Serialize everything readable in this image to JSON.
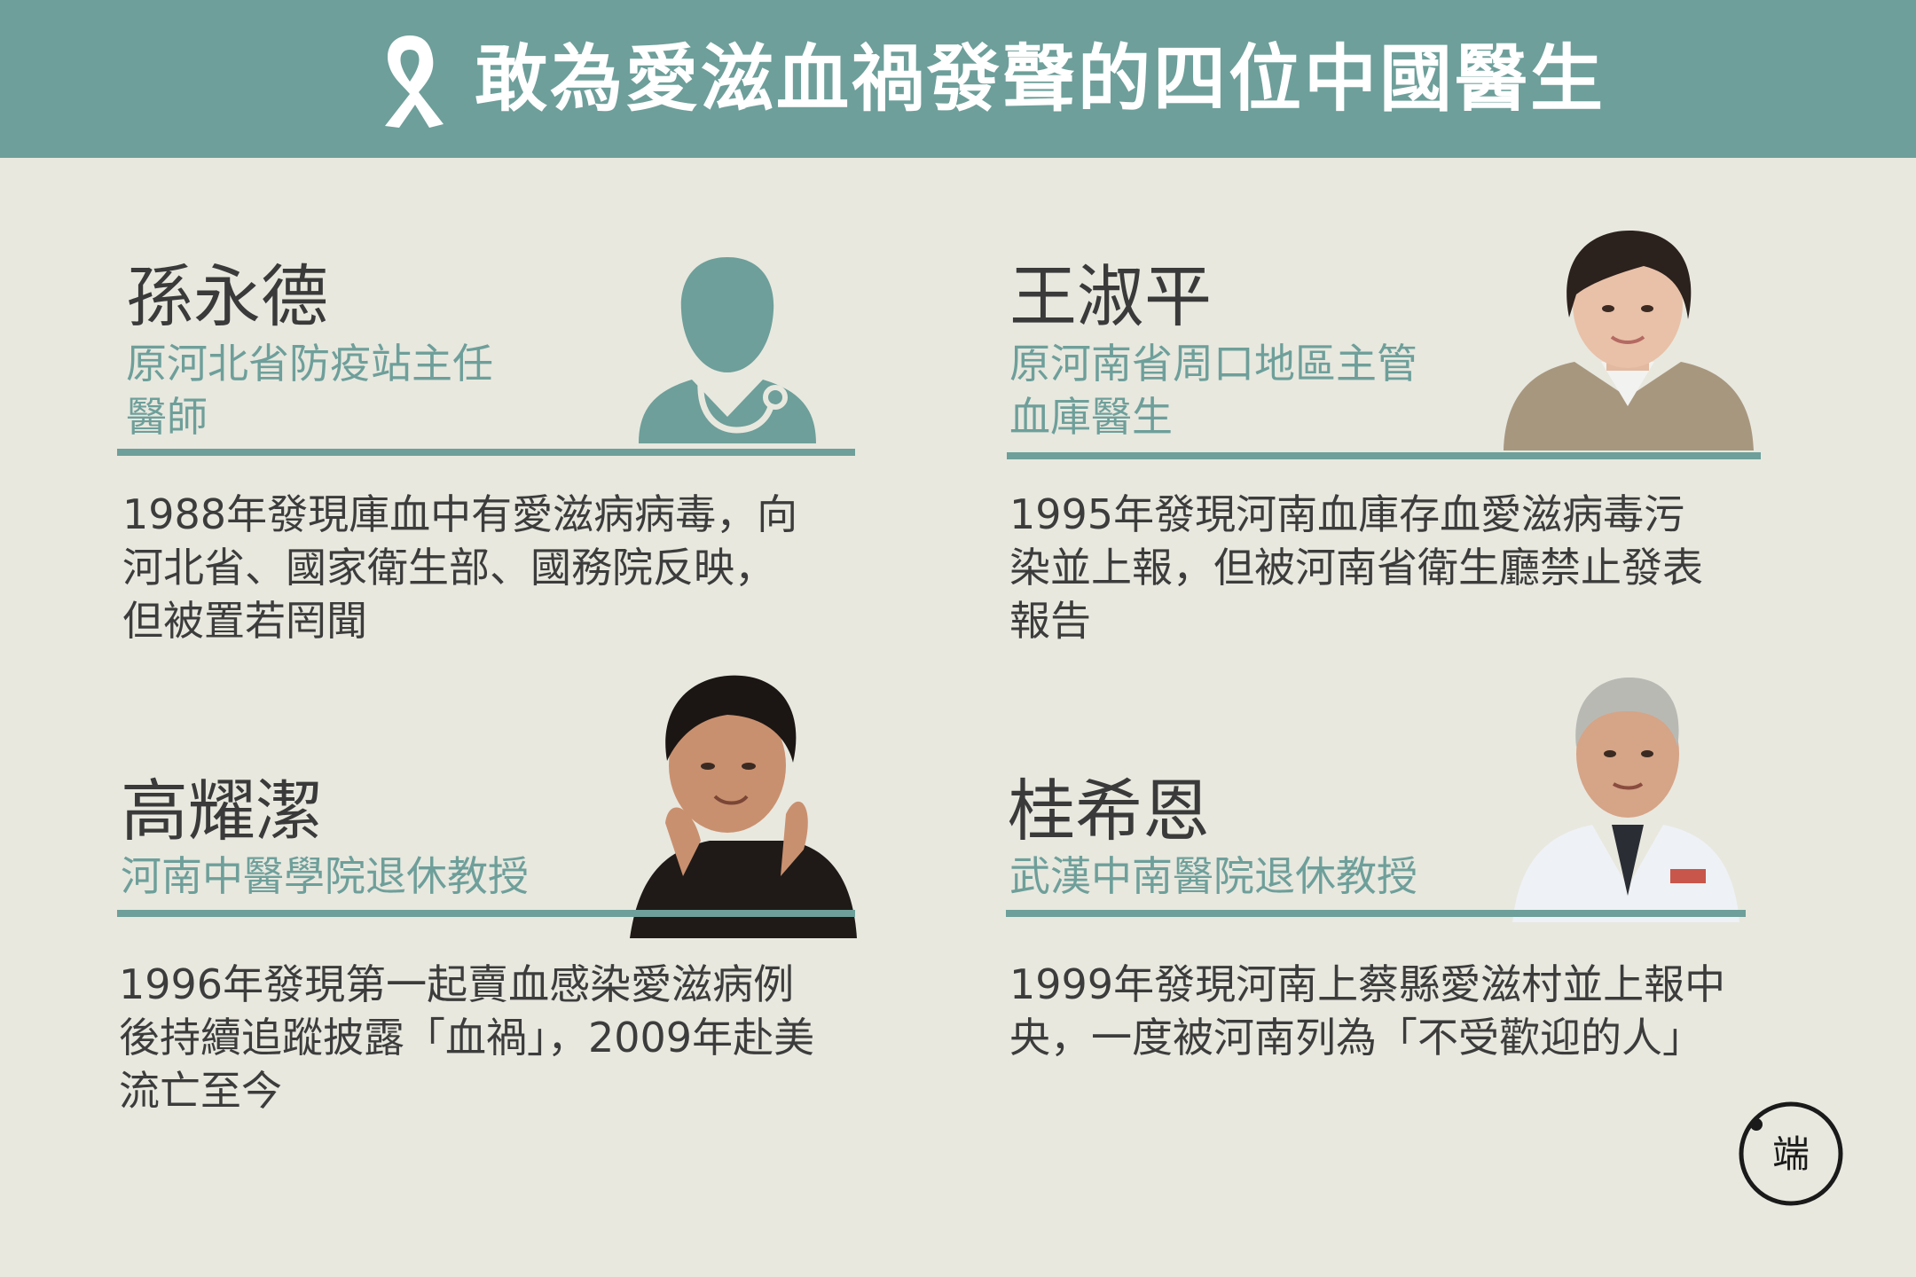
{
  "header": {
    "title": "敢為愛滋血禍發聲的四位中國醫生",
    "icon": "aids-ribbon-icon"
  },
  "colors": {
    "accent": "#6e9f9a",
    "background": "#e8e8df",
    "text": "#3a3a3a"
  },
  "doctors": [
    {
      "name": "孫永德",
      "role_line1": "原河北省防疫站主任",
      "role_line2": "醫師",
      "desc_line1": "1988年發現庫血中有愛滋病病毒，向",
      "desc_line2": "河北省、國家衛生部、國務院反映，",
      "desc_line3": "但被置若罔聞",
      "portrait": "doctor-silhouette-icon"
    },
    {
      "name": "王淑平",
      "role_line1": "原河南省周口地區主管",
      "role_line2": "血庫醫生",
      "desc_line1": "1995年發現河南血庫存血愛滋病毒污",
      "desc_line2": "染並上報，但被河南省衛生廳禁止發表",
      "desc_line3": "報告",
      "portrait": "woman-portrait"
    },
    {
      "name": "高耀潔",
      "role_line1": "河南中醫學院退休教授",
      "role_line2": "",
      "desc_line1": "1996年發現第一起賣血感染愛滋病例",
      "desc_line2": "後持續追蹤披露「血禍」，2009年赴美",
      "desc_line3": "流亡至今",
      "portrait": "elderly-woman-portrait"
    },
    {
      "name": "桂希恩",
      "role_line1": "武漢中南醫院退休教授",
      "role_line2": "",
      "desc_line1": "1999年發現河南上蔡縣愛滋村並上報中",
      "desc_line2": "央，一度被河南列為「不受歡迎的人」",
      "desc_line3": "",
      "portrait": "doctor-in-coat-portrait"
    }
  ],
  "logo": {
    "text": "端",
    "icon": "initium-logo-icon"
  }
}
